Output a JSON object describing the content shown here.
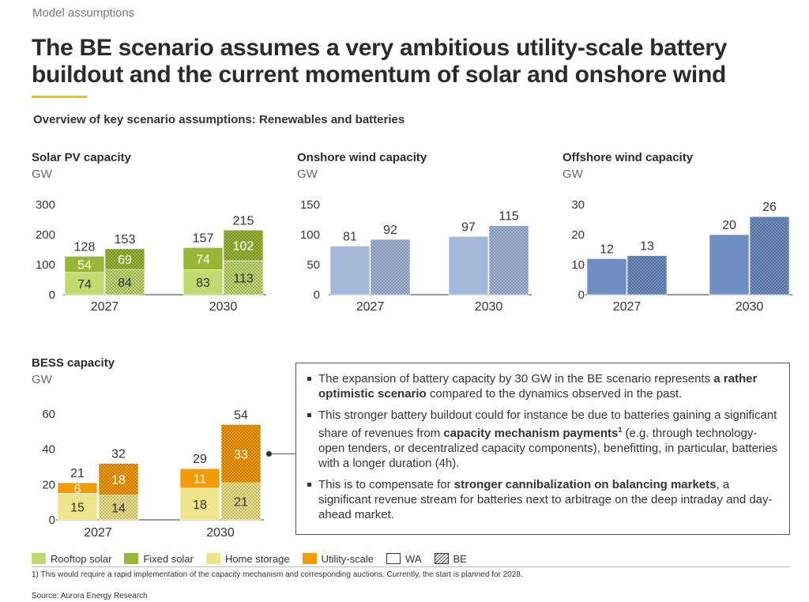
{
  "header": {
    "section_label": "Model assumptions",
    "title": "The BE scenario assumes a very ambitious utility-scale battery buildout and the current momentum of solar and onshore wind",
    "subtitle": "Overview of key scenario assumptions: Renewables and batteries"
  },
  "colors": {
    "rooftop_solar": "#c2d96f",
    "fixed_solar": "#9ab636",
    "home_storage": "#eee489",
    "utility_scale": "#f29b05",
    "onshore_wind": "#a4b8d9",
    "offshore_wind": "#6f8fc2",
    "accent_underline": "#f2c200"
  },
  "chart_data": [
    {
      "id": "solar",
      "type": "bar",
      "title": "Solar PV capacity",
      "unit": "GW",
      "stacked": true,
      "categories": [
        "2027",
        "2030"
      ],
      "scenarios": [
        "WA",
        "BE"
      ],
      "ylim": [
        0,
        300
      ],
      "yticks": [
        0,
        100,
        200,
        300
      ],
      "series": [
        {
          "name": "Rooftop solar",
          "color": "#c2d96f",
          "values": {
            "2027": {
              "WA": 74,
              "BE": 84
            },
            "2030": {
              "WA": 83,
              "BE": 113
            }
          }
        },
        {
          "name": "Fixed solar",
          "color": "#9ab636",
          "values": {
            "2027": {
              "WA": 54,
              "BE": 69
            },
            "2030": {
              "WA": 74,
              "BE": 102
            }
          }
        }
      ],
      "totals": {
        "2027": {
          "WA": 128,
          "BE": 153
        },
        "2030": {
          "WA": 157,
          "BE": 215
        }
      }
    },
    {
      "id": "onshore",
      "type": "bar",
      "title": "Onshore wind capacity",
      "unit": "GW",
      "stacked": false,
      "categories": [
        "2027",
        "2030"
      ],
      "scenarios": [
        "WA",
        "BE"
      ],
      "ylim": [
        0,
        150
      ],
      "yticks": [
        0,
        50,
        100,
        150
      ],
      "series": [
        {
          "name": "Onshore wind",
          "color": "#a4b8d9",
          "values": {
            "2027": {
              "WA": 81,
              "BE": 92
            },
            "2030": {
              "WA": 97,
              "BE": 115
            }
          }
        }
      ],
      "totals": {
        "2027": {
          "WA": 81,
          "BE": 92
        },
        "2030": {
          "WA": 97,
          "BE": 115
        }
      }
    },
    {
      "id": "offshore",
      "type": "bar",
      "title": "Offshore wind capacity",
      "unit": "GW",
      "stacked": false,
      "categories": [
        "2027",
        "2030"
      ],
      "scenarios": [
        "WA",
        "BE"
      ],
      "ylim": [
        0,
        30
      ],
      "yticks": [
        0,
        10,
        20,
        30
      ],
      "series": [
        {
          "name": "Offshore wind",
          "color": "#6f8fc2",
          "values": {
            "2027": {
              "WA": 12,
              "BE": 13
            },
            "2030": {
              "WA": 20,
              "BE": 26
            }
          }
        }
      ],
      "totals": {
        "2027": {
          "WA": 12,
          "BE": 13
        },
        "2030": {
          "WA": 20,
          "BE": 26
        }
      }
    },
    {
      "id": "bess",
      "type": "bar",
      "title": "BESS capacity",
      "unit": "GW",
      "stacked": true,
      "categories": [
        "2027",
        "2030"
      ],
      "scenarios": [
        "WA",
        "BE"
      ],
      "ylim": [
        0,
        60
      ],
      "yticks": [
        0,
        20,
        40,
        60
      ],
      "series": [
        {
          "name": "Home storage",
          "color": "#eee489",
          "values": {
            "2027": {
              "WA": 15,
              "BE": 14
            },
            "2030": {
              "WA": 18,
              "BE": 21
            }
          }
        },
        {
          "name": "Utility-scale",
          "color": "#f29b05",
          "values": {
            "2027": {
              "WA": 6,
              "BE": 18
            },
            "2030": {
              "WA": 11,
              "BE": 33
            }
          }
        }
      ],
      "totals": {
        "2027": {
          "WA": 21,
          "BE": 32
        },
        "2030": {
          "WA": 29,
          "BE": 54
        }
      }
    }
  ],
  "notes": {
    "bullets": [
      {
        "pre": "The expansion of battery capacity by 30 GW in the BE scenario represents ",
        "bold": "a rather optimistic scenario",
        "sup": "",
        "post": " compared to the dynamics observed in the past."
      },
      {
        "pre": "This stronger battery buildout could for instance be due to batteries gaining a significant share of revenues from ",
        "bold": "capacity mechanism payments",
        "sup": "1",
        "post": " (e.g. through technology-open tenders, or decentralized capacity components), benefitting, in particular, batteries with a longer duration (4h)."
      },
      {
        "pre": "This is to compensate for ",
        "bold": "stronger cannibalization on balancing markets",
        "sup": "",
        "post": ", a significant revenue stream for batteries next to arbitrage on the deep intraday and day-ahead market."
      }
    ]
  },
  "legend": [
    {
      "label": "Rooftop solar",
      "color": "#c2d96f",
      "kind": "solid"
    },
    {
      "label": "Fixed solar",
      "color": "#9ab636",
      "kind": "solid"
    },
    {
      "label": "Home storage",
      "color": "#eee489",
      "kind": "solid"
    },
    {
      "label": "Utility-scale",
      "color": "#f29b05",
      "kind": "solid"
    },
    {
      "label": "WA",
      "color": "#ffffff",
      "kind": "outline"
    },
    {
      "label": "BE",
      "color": "#ffffff",
      "kind": "hatched"
    }
  ],
  "footer": {
    "footnote": "1) This would require a rapid implementation of the capacity mechanism and corresponding auctions. Currently, the start is planned for 2028.",
    "source": "Source: Aurora Energy Research"
  }
}
